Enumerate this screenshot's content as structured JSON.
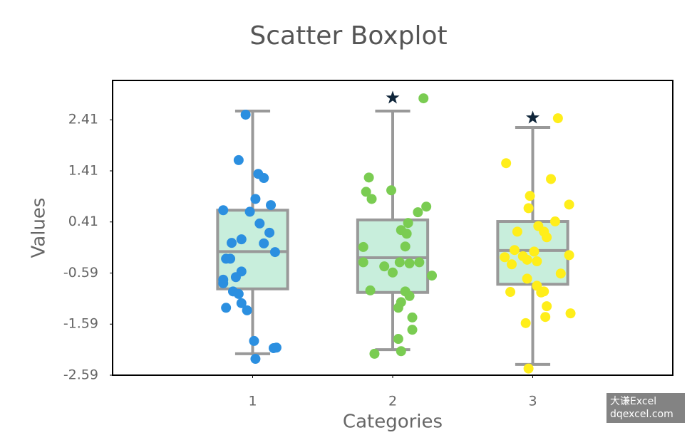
{
  "chart_data": {
    "type": "boxplot",
    "title": "Scatter Boxplot",
    "x_label": "Categories",
    "y_label": "Values",
    "xlim": [
      0,
      4
    ],
    "xticks": [
      1,
      2,
      3
    ],
    "ylim": [
      -2.59,
      3.18
    ],
    "yticks": [
      -2.59,
      -1.59,
      -0.59,
      0.41,
      1.41,
      2.41
    ],
    "box_color": "#c8eedc",
    "line_color": "#999999",
    "outlier_color": "#10263a",
    "boxes": [
      {
        "whisker_low": -2.17,
        "q1": -0.9,
        "median": -0.17,
        "q3": 0.64,
        "whisker_high": 2.58,
        "outliers": []
      },
      {
        "whisker_low": -2.09,
        "q1": -0.97,
        "median": -0.29,
        "q3": 0.45,
        "whisker_high": 2.58,
        "outliers": [
          2.84
        ]
      },
      {
        "whisker_low": -2.38,
        "q1": -0.81,
        "median": -0.15,
        "q3": 0.42,
        "whisker_high": 2.26,
        "outliers": [
          2.45
        ]
      }
    ],
    "points": [
      {
        "color": "#2b8fe0",
        "x": [
          0.95,
          0.9,
          1.04,
          1.08,
          1.02,
          1.13,
          0.79,
          0.98,
          1.05,
          1.12,
          0.92,
          0.85,
          1.08,
          1.16,
          0.81,
          0.84,
          0.92,
          0.88,
          0.79,
          0.79,
          0.86,
          0.9,
          0.92,
          0.96,
          0.81,
          1.01,
          1.15,
          1.17,
          1.02
        ],
        "values": [
          2.51,
          1.62,
          1.35,
          1.27,
          0.86,
          0.74,
          0.64,
          0.61,
          0.38,
          0.2,
          0.07,
          0.0,
          -0.01,
          -0.18,
          -0.31,
          -0.31,
          -0.56,
          -0.67,
          -0.72,
          -0.79,
          -0.95,
          -1.0,
          -1.18,
          -1.32,
          -1.27,
          -1.92,
          -2.06,
          -2.05,
          -2.27
        ]
      },
      {
        "color": "#7acc52",
        "x": [
          2.22,
          1.83,
          1.81,
          1.85,
          1.99,
          2.24,
          2.18,
          2.11,
          2.06,
          2.1,
          1.79,
          2.09,
          1.79,
          1.94,
          2.05,
          2.12,
          2.19,
          2.0,
          2.28,
          1.84,
          2.09,
          2.12,
          2.06,
          2.04,
          2.14,
          2.14,
          2.04,
          2.06,
          1.87
        ],
        "values": [
          2.83,
          1.28,
          1.0,
          0.86,
          1.03,
          0.71,
          0.6,
          0.39,
          0.25,
          0.18,
          -0.08,
          -0.07,
          -0.38,
          -0.46,
          -0.38,
          -0.4,
          -0.38,
          -0.58,
          -0.64,
          -0.93,
          -0.95,
          -1.04,
          -1.16,
          -1.27,
          -1.46,
          -1.7,
          -1.88,
          -2.12,
          -2.17
        ]
      },
      {
        "color": "#ffee1a",
        "x": [
          3.18,
          2.81,
          3.13,
          2.98,
          2.97,
          3.26,
          3.16,
          3.04,
          2.89,
          3.08,
          3.1,
          2.87,
          3.01,
          2.8,
          2.93,
          2.85,
          3.26,
          2.96,
          3.03,
          3.2,
          2.96,
          3.03,
          3.08,
          3.06,
          2.84,
          3.1,
          3.27,
          3.09,
          2.95,
          2.97
        ],
        "values": [
          2.44,
          1.56,
          1.25,
          0.92,
          0.68,
          0.75,
          0.42,
          0.33,
          0.22,
          0.22,
          0.11,
          -0.14,
          -0.17,
          -0.28,
          -0.26,
          -0.42,
          -0.24,
          -0.33,
          -0.36,
          -0.6,
          -0.7,
          -0.84,
          -0.95,
          -0.97,
          -0.96,
          -1.24,
          -1.38,
          -1.45,
          -1.57,
          -2.46
        ]
      }
    ]
  },
  "watermark": {
    "line1": "大谦Excel",
    "line2": "dqexcel.com"
  }
}
